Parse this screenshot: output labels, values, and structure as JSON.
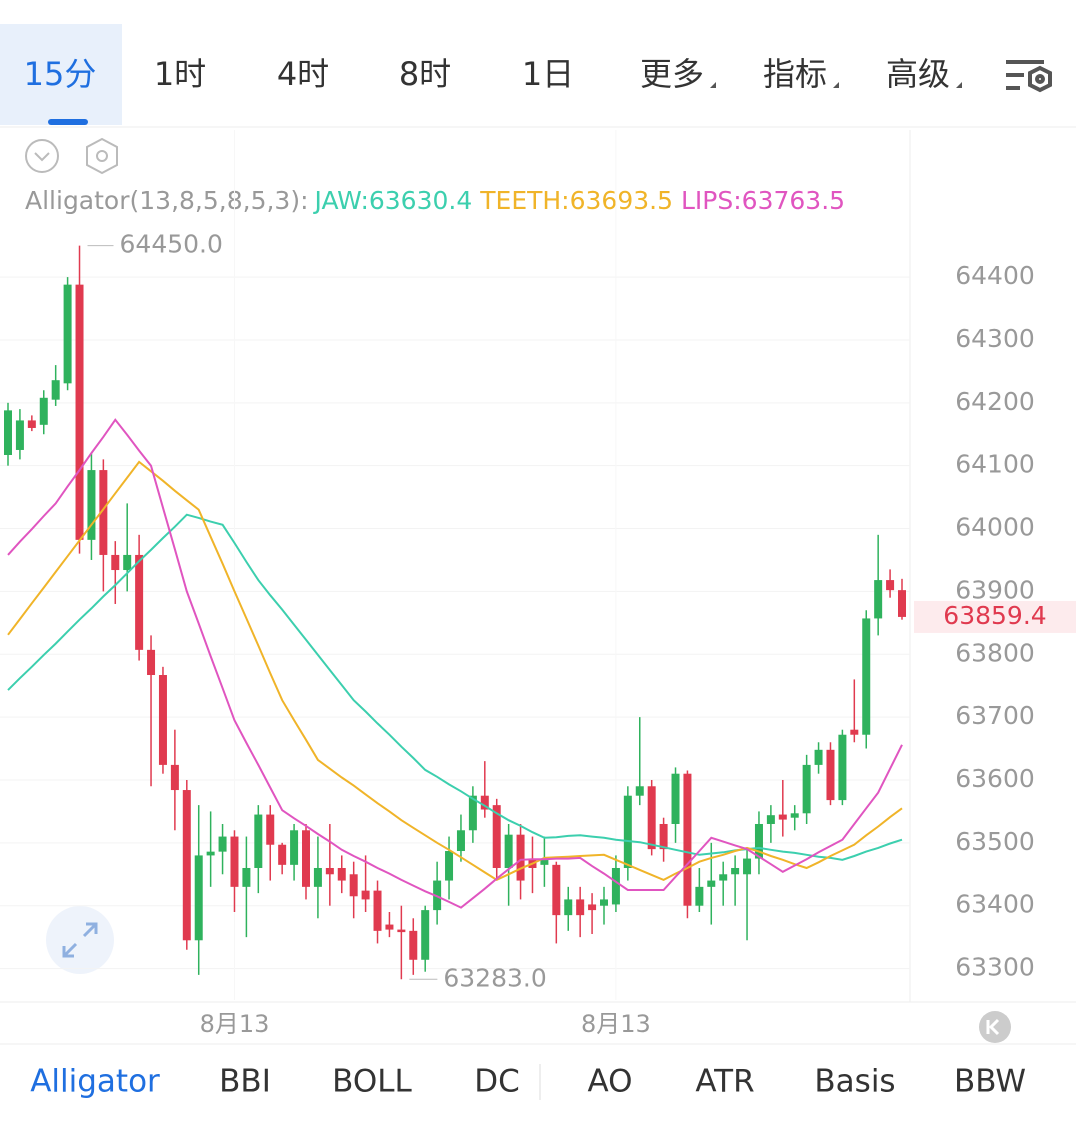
{
  "top_tabs": {
    "items": [
      "15分",
      "1时",
      "4时",
      "8时",
      "1日",
      "更多",
      "指标",
      "高级"
    ],
    "selected": 0
  },
  "indicator_label": "Alligator(13,8,5,8,5,3):",
  "bottom_tabs": {
    "items": [
      "Alligator",
      "BBI",
      "BOLL",
      "DC",
      "AO",
      "ATR",
      "Basis",
      "BBW"
    ],
    "selected": 0
  },
  "chart_data": {
    "type": "candlestick",
    "up_color": "#2fb25d",
    "down_color": "#e03a4f",
    "ylim": [
      63250,
      64634
    ],
    "yticks": [
      63300,
      63400,
      63500,
      63600,
      63700,
      63800,
      63900,
      64000,
      64100,
      64200,
      64300,
      64400
    ],
    "grid": true,
    "categories": [
      null,
      null,
      null,
      null,
      null,
      null,
      null,
      null,
      null,
      null,
      null,
      null,
      null,
      null,
      null,
      null,
      null,
      null,
      null,
      "8月13",
      null,
      null,
      null,
      null,
      null,
      null,
      null,
      null,
      null,
      null,
      null,
      null,
      null,
      null,
      null,
      null,
      null,
      null,
      null,
      null,
      null,
      null,
      null,
      null,
      null,
      null,
      null,
      null,
      null,
      null,
      null,
      "8月13",
      null,
      null,
      null,
      null,
      null,
      null,
      null,
      null,
      null,
      null,
      null,
      null,
      null,
      null,
      null,
      null,
      null,
      null,
      null,
      null,
      null,
      null,
      null,
      null
    ],
    "open": [
      64117,
      64125,
      64172,
      64165,
      64205,
      64231,
      64388,
      63982,
      64093,
      63958,
      63934,
      63958,
      63807,
      63767,
      63624,
      63584,
      63345,
      63480,
      63486,
      63510,
      63430,
      63460,
      63545,
      63497,
      63465,
      63520,
      63430,
      63460,
      63460,
      63450,
      63424,
      63424,
      63370,
      63362,
      63360,
      63314,
      63393,
      63440,
      63487,
      63520,
      63575,
      63560,
      63460,
      63513,
      63475,
      63465,
      63465,
      63385,
      63410,
      63402,
      63400,
      63402,
      63460,
      63575,
      63590,
      63530,
      63530,
      63610,
      63400,
      63430,
      63440,
      63450,
      63450,
      63475,
      63530,
      63545,
      63540,
      63547,
      63624,
      63648,
      63568,
      63680,
      63672,
      63857,
      63918,
      63902
    ],
    "high": [
      64200,
      64190,
      64180,
      64220,
      64260,
      64400,
      64450,
      64120,
      64110,
      63980,
      64040,
      63990,
      63830,
      63780,
      63680,
      63600,
      63560,
      63550,
      63530,
      63520,
      63510,
      63560,
      63560,
      63500,
      63530,
      63530,
      63510,
      63530,
      63480,
      63470,
      63480,
      63440,
      63390,
      63400,
      63380,
      63400,
      63470,
      63510,
      63545,
      63590,
      63630,
      63570,
      63530,
      63530,
      63510,
      63510,
      63470,
      63430,
      63430,
      63420,
      63430,
      63480,
      63590,
      63700,
      63600,
      63540,
      63620,
      63615,
      63460,
      63500,
      63470,
      63480,
      63490,
      63550,
      63560,
      63600,
      63560,
      63640,
      63660,
      63660,
      63680,
      63760,
      63870,
      63990,
      63935,
      63920
    ],
    "low": [
      64100,
      64110,
      64155,
      64150,
      64195,
      64220,
      63960,
      63950,
      63900,
      63880,
      63900,
      63790,
      63590,
      63610,
      63520,
      63330,
      63290,
      63430,
      63450,
      63390,
      63350,
      63420,
      63440,
      63450,
      63440,
      63410,
      63380,
      63400,
      63420,
      63380,
      63390,
      63340,
      63350,
      63283,
      63290,
      63295,
      63370,
      63410,
      63470,
      63500,
      63540,
      63440,
      63400,
      63410,
      63420,
      63430,
      63340,
      63360,
      63350,
      63355,
      63370,
      63390,
      63440,
      63560,
      63480,
      63470,
      63500,
      63380,
      63390,
      63370,
      63400,
      63400,
      63345,
      63450,
      63500,
      63510,
      63520,
      63530,
      63610,
      63560,
      63560,
      63660,
      63650,
      63830,
      63890,
      63855
    ],
    "close": [
      64188,
      64172,
      64160,
      64208,
      64236,
      64388,
      63982,
      64093,
      63958,
      63934,
      63958,
      63807,
      63767,
      63624,
      63584,
      63345,
      63480,
      63486,
      63510,
      63430,
      63460,
      63545,
      63497,
      63465,
      63520,
      63430,
      63460,
      63450,
      63440,
      63415,
      63410,
      63360,
      63362,
      63358,
      63314,
      63393,
      63440,
      63487,
      63520,
      63575,
      63553,
      63460,
      63513,
      63440,
      63460,
      63475,
      63385,
      63410,
      63385,
      63393,
      63410,
      63460,
      63575,
      63590,
      63490,
      63490,
      63610,
      63400,
      63430,
      63440,
      63450,
      63460,
      63475,
      63530,
      63544,
      63537,
      63547,
      63624,
      63648,
      63568,
      63672,
      63672,
      63857,
      63918,
      63902,
      63859.4
    ],
    "lines": [
      {
        "name": "JAW:63630.4",
        "color": "#3ccfae",
        "values": [
          63743,
          63762,
          63780,
          63799,
          63817,
          63836,
          63855,
          63873,
          63892,
          63910,
          63929,
          63948,
          63966,
          63985,
          64003,
          64022,
          64017,
          64011,
          64006,
          63977,
          63947,
          63918,
          63894,
          63871,
          63847,
          63823,
          63799,
          63775,
          63751,
          63727,
          63709,
          63690,
          63672,
          63653,
          63635,
          63616,
          63605,
          63593,
          63582,
          63570,
          63559,
          63547,
          63536,
          63527,
          63517,
          63508,
          63509,
          63511,
          63512,
          63510,
          63508,
          63505,
          63503,
          63501,
          63497,
          63493,
          63489,
          63485,
          63481,
          63483,
          63485,
          63488,
          63490,
          63492,
          63489,
          63486,
          63484,
          63481,
          63478,
          63476,
          63473,
          63479,
          63486,
          63492,
          63499,
          63505
        ]
      },
      {
        "name": "TEETH:63693.5",
        "color": "#f0b429",
        "values": [
          63831,
          63856,
          63881,
          63906,
          63931,
          63956,
          63981,
          64006,
          64031,
          64056,
          64081,
          64106,
          64091,
          64076,
          64060,
          64045,
          64030,
          63987,
          63944,
          63900,
          63857,
          63814,
          63770,
          63727,
          63695,
          63664,
          63632,
          63618,
          63604,
          63591,
          63577,
          63563,
          63550,
          63536,
          63524,
          63512,
          63500,
          63489,
          63477,
          63465,
          63453,
          63441,
          63450,
          63459,
          63467,
          63476,
          63477,
          63478,
          63479,
          63480,
          63481,
          63473,
          63465,
          63457,
          63449,
          63441,
          63451,
          63460,
          63470,
          63476,
          63481,
          63487,
          63492,
          63486,
          63479,
          63473,
          63466,
          63460,
          63469,
          63479,
          63488,
          63497,
          63512,
          63526,
          63541,
          63555
        ]
      },
      {
        "name": "LIPS:63763.5",
        "color": "#e055c0",
        "values": [
          63958,
          63979,
          63999,
          64020,
          64040,
          64067,
          64093,
          64120,
          64146,
          64173,
          64149,
          64124,
          64100,
          64033,
          63967,
          63900,
          63849,
          63797,
          63746,
          63695,
          63659,
          63624,
          63588,
          63552,
          63539,
          63527,
          63514,
          63502,
          63489,
          63479,
          63470,
          63460,
          63451,
          63441,
          63432,
          63423,
          63415,
          63406,
          63397,
          63412,
          63427,
          63443,
          63458,
          63473,
          63474,
          63474,
          63475,
          63475,
          63476,
          63463,
          63451,
          63438,
          63425,
          63425,
          63425,
          63425,
          63446,
          63466,
          63487,
          63508,
          63502,
          63496,
          63490,
          63478,
          63466,
          63454,
          63464,
          63474,
          63485,
          63495,
          63505,
          63530,
          63555,
          63580,
          63618,
          63656
        ]
      }
    ],
    "max_label": {
      "value": 64450,
      "label": "64450.0"
    },
    "min_label": {
      "value": 63283,
      "label": "63283.0"
    },
    "last_price": 63859.4
  }
}
